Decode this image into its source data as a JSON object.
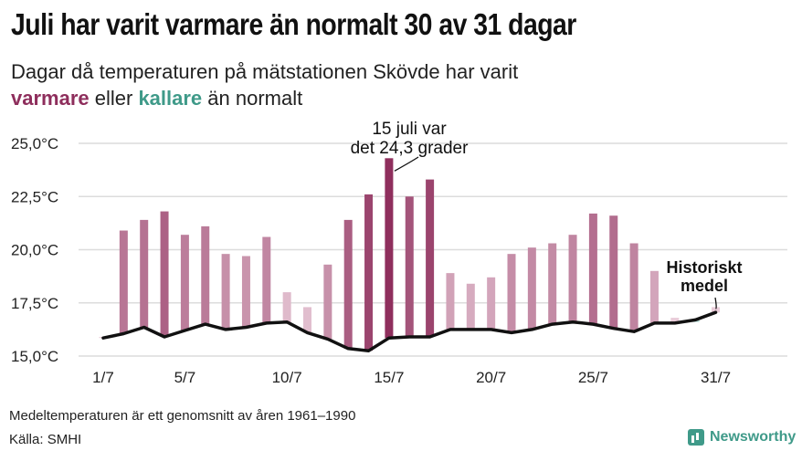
{
  "title": "Juli har varit varmare än normalt 30 av 31 dagar",
  "subtitle": {
    "line1": "Dagar då temperaturen på mätstationen Skövde har varit",
    "warm_word": "varmare",
    "middle": " eller ",
    "cold_word": "kallare",
    "end": " än normalt"
  },
  "colors": {
    "warm_strong": "#8e2e5c",
    "warm_light": "#e9ccd9",
    "cold_light": "#b9ddd6",
    "average_line": "#111111",
    "grid": "#dcdcdc",
    "brand": "#3f9a89"
  },
  "chart_data": {
    "type": "bar",
    "x": [
      1,
      2,
      3,
      4,
      5,
      6,
      7,
      8,
      9,
      10,
      11,
      12,
      13,
      14,
      15,
      16,
      17,
      18,
      19,
      20,
      21,
      22,
      23,
      24,
      25,
      26,
      27,
      28,
      29,
      30,
      31
    ],
    "x_unit": "juli",
    "series": [
      {
        "type": "bar",
        "values": [
          15.9,
          20.9,
          21.4,
          21.8,
          20.7,
          21.1,
          19.8,
          19.7,
          20.6,
          18.0,
          17.3,
          19.3,
          21.4,
          22.6,
          24.3,
          22.5,
          23.3,
          18.9,
          18.4,
          18.7,
          19.8,
          20.1,
          20.3,
          20.7,
          21.7,
          21.6,
          20.3,
          19.0,
          16.8,
          16.6,
          17.3
        ]
      },
      {
        "type": "line",
        "values": [
          15.85,
          16.05,
          16.35,
          15.9,
          16.2,
          16.5,
          16.25,
          16.35,
          16.55,
          16.6,
          16.1,
          15.8,
          15.35,
          15.25,
          15.85,
          15.9,
          15.9,
          16.25,
          16.25,
          16.25,
          16.1,
          16.25,
          16.5,
          16.6,
          16.5,
          16.3,
          16.15,
          16.55,
          16.55,
          16.7,
          17.05
        ]
      }
    ],
    "y_ticks": [
      "15,0°C",
      "17,5°C",
      "20,0°C",
      "22,5°C",
      "25,0°C"
    ],
    "x_ticks": [
      {
        "day": 1,
        "label": "1/7"
      },
      {
        "day": 5,
        "label": "5/7"
      },
      {
        "day": 10,
        "label": "10/7"
      },
      {
        "day": 15,
        "label": "15/7"
      },
      {
        "day": 20,
        "label": "20/7"
      },
      {
        "day": 25,
        "label": "25/7"
      },
      {
        "day": 31,
        "label": "31/7"
      }
    ],
    "ylim": [
      15,
      25
    ],
    "annotations": [
      {
        "day": 15,
        "lines": [
          "15 juli var",
          "det 24,3 grader"
        ]
      },
      {
        "day": 30,
        "lines": [
          "Historiskt",
          "medel"
        ]
      }
    ]
  },
  "footer": {
    "note": "Medeltemperaturen är ett genomsnitt av åren 1961–1990",
    "source": "Källa: SMHI",
    "brand": "Newsworthy"
  }
}
